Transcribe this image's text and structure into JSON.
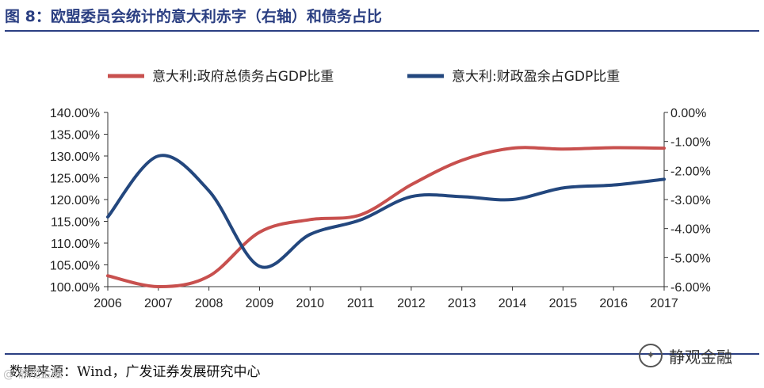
{
  "header": {
    "title": "图 8：欧盟委员会统计的意大利赤字（右轴）和债务占比"
  },
  "footer": {
    "source": "数据来源：Wind，广发证券发展研究中心",
    "watermark": "静观金融",
    "corner_watermark": "@ 静观金融"
  },
  "colors": {
    "debt": "#c8504e",
    "balance": "#23477e",
    "accent": "#2b3f82"
  },
  "chart_data": {
    "type": "line",
    "title": "",
    "categories": [
      "2006",
      "2007",
      "2008",
      "2009",
      "2010",
      "2011",
      "2012",
      "2013",
      "2014",
      "2015",
      "2016",
      "2017"
    ],
    "series": [
      {
        "name": "意大利:政府总债务占GDP比重",
        "axis": "left",
        "values": [
          102.5,
          100.0,
          102.4,
          112.5,
          115.4,
          116.5,
          123.4,
          129.0,
          131.8,
          131.6,
          131.9,
          131.8
        ]
      },
      {
        "name": "意大利:财政盈余占GDP比重",
        "axis": "right",
        "values": [
          -3.6,
          -1.5,
          -2.7,
          -5.3,
          -4.2,
          -3.7,
          -2.9,
          -2.9,
          -3.0,
          -2.6,
          -2.5,
          -2.3
        ]
      }
    ],
    "yleft": {
      "lim": [
        100,
        140
      ],
      "ticks": [
        "100.00%",
        "105.00%",
        "110.00%",
        "115.00%",
        "120.00%",
        "125.00%",
        "130.00%",
        "135.00%",
        "140.00%"
      ]
    },
    "yright": {
      "lim": [
        -6,
        0
      ],
      "ticks": [
        "-6.00%",
        "-5.00%",
        "-4.00%",
        "-3.00%",
        "-2.00%",
        "-1.00%",
        "0.00%"
      ]
    },
    "legend_position": "top-center",
    "grid": false
  }
}
